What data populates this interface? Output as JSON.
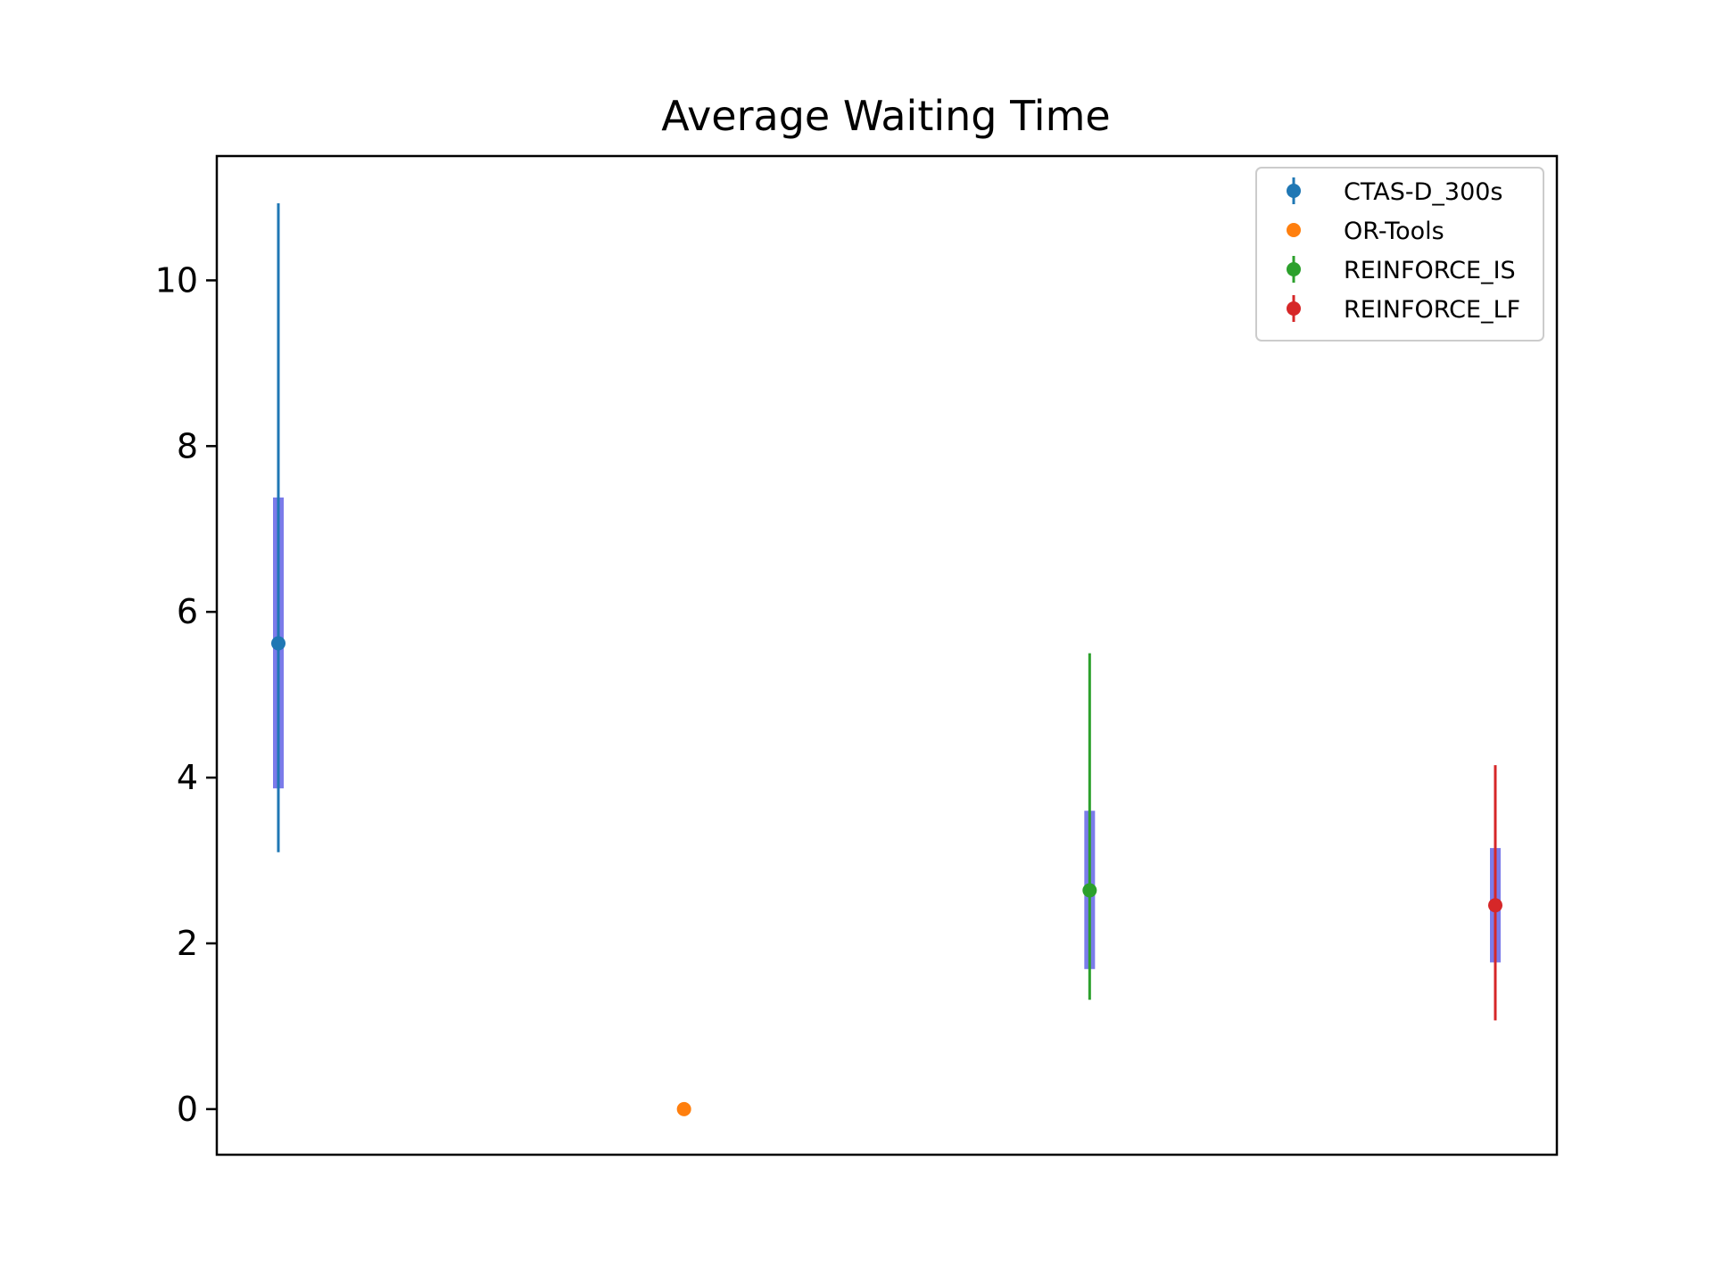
{
  "chart_data": {
    "type": "scatter",
    "title": "Average Waiting Time",
    "xlabel": "",
    "ylabel": "",
    "ylim": [
      -0.55,
      11.5
    ],
    "yticks": [
      0,
      2,
      4,
      6,
      8,
      10
    ],
    "grid": false,
    "legend_position": "top-right",
    "series": [
      {
        "name": "CTAS-D_300s",
        "color": "#1f77b4",
        "mean": 5.62,
        "min": 3.1,
        "max": 10.93,
        "q1": 3.87,
        "q3": 7.38
      },
      {
        "name": "OR-Tools",
        "color": "#ff7f0e",
        "mean": 0.0,
        "min": 0.0,
        "max": 0.0,
        "q1": 0.0,
        "q3": 0.0
      },
      {
        "name": "REINFORCE_IS",
        "color": "#2ca02c",
        "mean": 2.64,
        "min": 1.32,
        "max": 5.5,
        "q1": 1.69,
        "q3": 3.6
      },
      {
        "name": "REINFORCE_LF",
        "color": "#d62728",
        "mean": 2.46,
        "min": 1.07,
        "max": 4.15,
        "q1": 1.77,
        "q3": 3.15
      }
    ],
    "box_color": "#7b7bea"
  }
}
